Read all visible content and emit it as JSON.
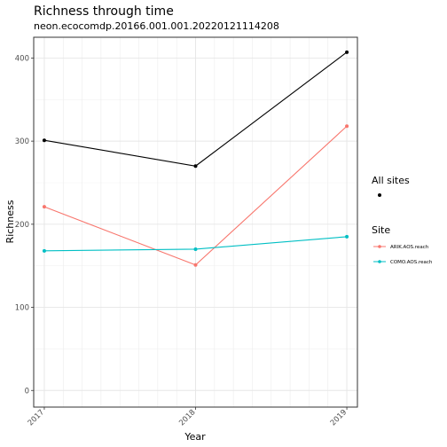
{
  "chart_data": {
    "type": "line",
    "title": "Richness through time",
    "subtitle": "neon.ecocomdp.20166.001.001.20220121114208",
    "xlabel": "Year",
    "ylabel": "Richness",
    "x": [
      2017,
      2018,
      2019
    ],
    "x_tick_labels": [
      "2017",
      "2018",
      "2019"
    ],
    "y_ticks": [
      0,
      100,
      200,
      300,
      400
    ],
    "y_tick_labels": [
      "0",
      "100",
      "200",
      "300",
      "400"
    ],
    "xlim": [
      2016.93,
      2019.07
    ],
    "ylim": [
      -20,
      425
    ],
    "grid": true,
    "legend_position": "right",
    "all_sites": {
      "legend_title": "All sites",
      "color": "#000000",
      "values": [
        301,
        270,
        407
      ]
    },
    "site_legend_title": "Site",
    "series": [
      {
        "name": "ARIK.AOS.reach",
        "color": "#F8766D",
        "values": [
          221,
          151,
          318
        ]
      },
      {
        "name": "COMO.AOS.reach",
        "color": "#00BFC4",
        "values": [
          168,
          170,
          185
        ]
      }
    ]
  }
}
